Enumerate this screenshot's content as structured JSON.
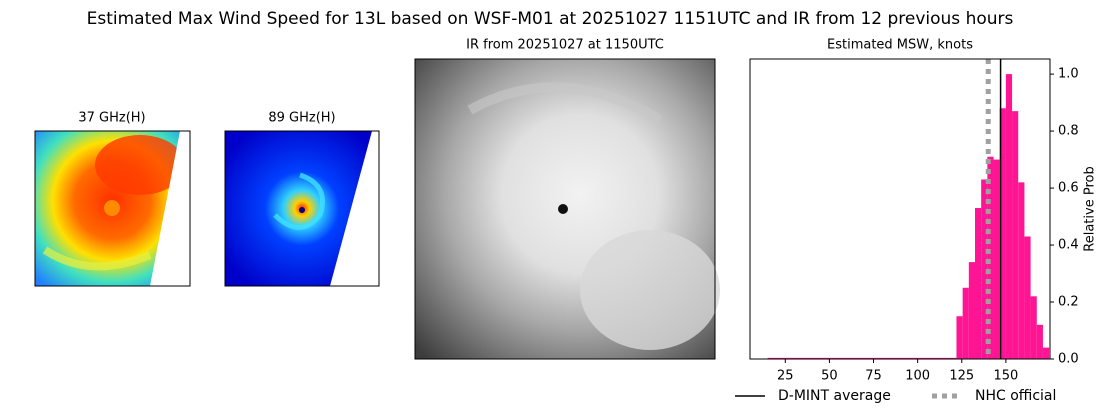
{
  "title": "Estimated Max Wind Speed for 13L based on WSF-M01 at 20251027 1151UTC and IR from 12 previous hours",
  "panels": [
    {
      "title": "37 GHz(H)"
    },
    {
      "title": "89 GHz(H)"
    },
    {
      "title": "IR from 20251027 at 1150UTC"
    }
  ],
  "chart_data": {
    "type": "histogram",
    "title": "Estimated MSW, knots",
    "y_label": "Relative Prob",
    "bins": [
      15,
      122,
      125.5,
      129,
      132.5,
      136,
      139.5,
      143,
      146.5,
      150,
      153.5,
      157,
      160.5,
      164,
      167.5,
      171,
      174.5
    ],
    "values": [
      0.004,
      0.15,
      0.25,
      0.34,
      0.53,
      0.63,
      0.71,
      0.7,
      0.88,
      1.0,
      0.87,
      0.62,
      0.43,
      0.22,
      0.12,
      0.04
    ],
    "color": "#ff1493",
    "xlim": [
      5,
      175
    ],
    "ylim": [
      0,
      1.053
    ],
    "xticks": [
      25,
      50,
      75,
      100,
      125,
      150
    ],
    "yticks": [
      {
        "value": 0,
        "label": "0.0"
      },
      {
        "value": 0.2,
        "label": "0.2"
      },
      {
        "value": 0.4,
        "label": "0.4"
      },
      {
        "value": 0.6,
        "label": "0.6"
      },
      {
        "value": 0.8,
        "label": "0.8"
      },
      {
        "value": 1.0,
        "label": "1.0"
      }
    ],
    "lines": [
      {
        "name": "D-MINT average",
        "value": 147,
        "color": "#000000",
        "style": "solid"
      },
      {
        "name": "NHC official",
        "value": 140,
        "color": "#a0a0a0",
        "style": "dotted"
      }
    ]
  }
}
